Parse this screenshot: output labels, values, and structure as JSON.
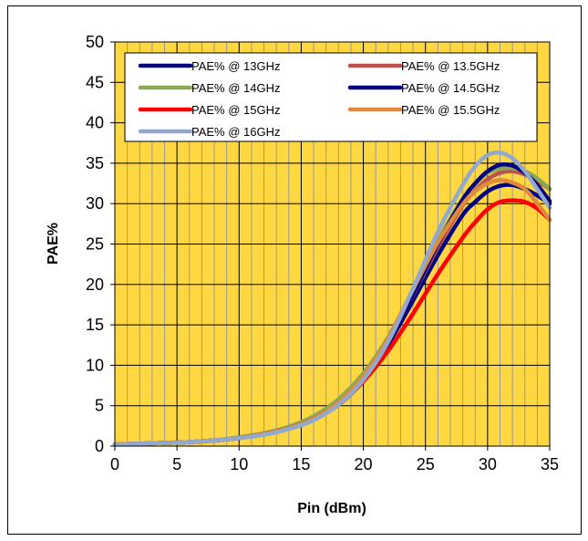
{
  "chart_data": {
    "type": "line",
    "title": "",
    "xlabel": "Pin (dBm)",
    "ylabel": "PAE%",
    "xlim": [
      0,
      35
    ],
    "ylim": [
      0,
      50
    ],
    "x_ticks": [
      0,
      5,
      10,
      15,
      20,
      25,
      30,
      35
    ],
    "y_ticks": [
      0,
      5,
      10,
      15,
      20,
      25,
      30,
      35,
      40,
      45,
      50
    ],
    "grid": true,
    "legend_position": "top",
    "plot_background": "#FFD740",
    "x": [
      0,
      2,
      4,
      6,
      8,
      10,
      12,
      14,
      16,
      18,
      20,
      22,
      24,
      26,
      28,
      29,
      30,
      31,
      32,
      33,
      34,
      35
    ],
    "series": [
      {
        "name": "PAE% @ 13GHz",
        "color": "#000080",
        "values": [
          0.2,
          0.3,
          0.4,
          0.5,
          0.7,
          1.0,
          1.5,
          2.2,
          3.4,
          5.3,
          8.3,
          12.6,
          18.0,
          23.6,
          28.6,
          30.2,
          31.5,
          32.2,
          32.3,
          31.8,
          31.0,
          30.0
        ]
      },
      {
        "name": "PAE% @ 13.5GHz",
        "color": "#C0504D",
        "values": [
          0.2,
          0.3,
          0.4,
          0.5,
          0.7,
          1.0,
          1.5,
          2.3,
          3.5,
          5.5,
          8.6,
          13.0,
          18.7,
          24.6,
          29.8,
          31.6,
          33.0,
          33.8,
          34.0,
          33.6,
          32.8,
          31.8
        ]
      },
      {
        "name": "PAE% @ 14GHz",
        "color": "#8BA955",
        "values": [
          0.2,
          0.3,
          0.4,
          0.5,
          0.7,
          1.1,
          1.6,
          2.4,
          3.7,
          5.8,
          9.0,
          13.5,
          19.3,
          25.4,
          30.6,
          32.4,
          33.8,
          34.3,
          34.4,
          34.0,
          33.1,
          31.8
        ]
      },
      {
        "name": "PAE% @ 14.5GHz",
        "color": "#000080",
        "values": [
          0.2,
          0.3,
          0.4,
          0.5,
          0.7,
          1.0,
          1.5,
          2.2,
          3.4,
          5.3,
          8.4,
          12.9,
          18.8,
          25.0,
          30.5,
          32.5,
          34.0,
          34.8,
          34.7,
          33.8,
          32.3,
          30.3
        ]
      },
      {
        "name": "PAE% @ 15GHz",
        "color": "#FF0000",
        "values": [
          0.2,
          0.3,
          0.4,
          0.5,
          0.7,
          1.0,
          1.5,
          2.2,
          3.3,
          5.1,
          8.0,
          11.8,
          16.4,
          21.3,
          25.8,
          27.7,
          29.3,
          30.2,
          30.4,
          30.2,
          29.4,
          28.0
        ]
      },
      {
        "name": "PAE% @ 15.5GHz",
        "color": "#E28A3C",
        "values": [
          0.2,
          0.3,
          0.4,
          0.5,
          0.7,
          1.0,
          1.5,
          2.2,
          3.4,
          5.4,
          8.6,
          13.3,
          19.4,
          25.2,
          29.9,
          31.5,
          32.5,
          32.9,
          32.6,
          31.8,
          30.0,
          28.0
        ]
      },
      {
        "name": "PAE% @ 16GHz",
        "color": "#91A9CF",
        "values": [
          0.2,
          0.3,
          0.4,
          0.5,
          0.7,
          1.0,
          1.4,
          2.1,
          3.2,
          5.1,
          8.2,
          12.9,
          19.5,
          26.5,
          32.3,
          34.6,
          36.0,
          36.3,
          35.6,
          34.0,
          31.8,
          29.5
        ]
      }
    ]
  }
}
